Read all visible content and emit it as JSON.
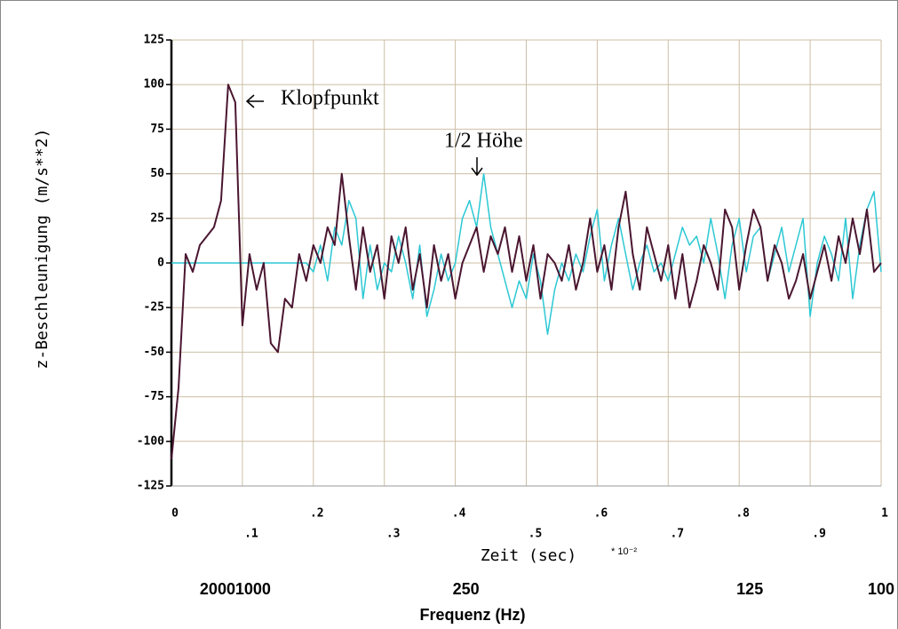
{
  "chart_data": {
    "type": "line",
    "y_label": "z-Beschleunigung (m/s**2)",
    "x_label": "Zeit (sec)",
    "x_unit": "* 10⁻²",
    "x2_label": "Frequenz (Hz)",
    "annotations": [
      {
        "text": "Klopfpunkt"
      },
      {
        "text": "1/2 Höhe"
      }
    ],
    "xlim": [
      0,
      1
    ],
    "ylim": [
      -125,
      125
    ],
    "xticks": [
      0,
      {
        "value": 0.1,
        "label": ".1"
      },
      {
        "value": 0.2,
        "label": ".2"
      },
      {
        "value": 0.3,
        "label": ".3"
      },
      {
        "value": 0.4,
        "label": ".4"
      },
      {
        "value": 0.5,
        "label": ".5"
      },
      {
        "value": 0.6,
        "label": ".6"
      },
      {
        "value": 0.7,
        "label": ".7"
      },
      {
        "value": 0.8,
        "label": ".8"
      },
      {
        "value": 0.9,
        "label": ".9"
      },
      1
    ],
    "x2ticks": [
      {
        "value": 0.05,
        "label": "2000"
      },
      {
        "value": 0.1,
        "label": "1000"
      },
      {
        "value": 0.4,
        "label": "250"
      },
      {
        "value": 0.8,
        "label": "125"
      },
      {
        "value": 1,
        "label": "100"
      }
    ],
    "yticks": [
      125,
      100,
      75,
      50,
      25,
      0,
      -25,
      -50,
      -75,
      -100,
      -125
    ],
    "grid": true,
    "x": [
      0,
      0.01,
      0.02,
      0.03,
      0.04,
      0.05,
      0.06,
      0.07,
      0.08,
      0.09,
      0.1,
      0.11,
      0.12,
      0.13,
      0.14,
      0.15,
      0.16,
      0.17,
      0.18,
      0.19,
      0.2,
      0.21,
      0.22,
      0.23,
      0.24,
      0.25,
      0.26,
      0.27,
      0.28,
      0.29,
      0.3,
      0.31,
      0.32,
      0.33,
      0.34,
      0.35,
      0.36,
      0.37,
      0.38,
      0.39,
      0.4,
      0.41,
      0.42,
      0.43,
      0.44,
      0.45,
      0.46,
      0.47,
      0.48,
      0.49,
      0.5,
      0.51,
      0.52,
      0.53,
      0.54,
      0.55,
      0.56,
      0.57,
      0.58,
      0.59,
      0.6,
      0.61,
      0.62,
      0.63,
      0.64,
      0.65,
      0.66,
      0.67,
      0.68,
      0.69,
      0.7,
      0.71,
      0.72,
      0.73,
      0.74,
      0.75,
      0.76,
      0.77,
      0.78,
      0.79,
      0.8,
      0.81,
      0.82,
      0.83,
      0.84,
      0.85,
      0.86,
      0.87,
      0.88,
      0.89,
      0.9,
      0.91,
      0.92,
      0.93,
      0.94,
      0.95,
      0.96,
      0.97,
      0.98,
      0.99,
      1
    ],
    "series": [
      {
        "color": "#2cc8d4",
        "values": [
          0,
          0,
          0,
          0,
          0,
          0,
          0,
          0,
          0,
          0,
          0,
          0,
          0,
          0,
          0,
          0,
          0,
          0,
          0,
          0,
          -5,
          10,
          -10,
          20,
          10,
          35,
          25,
          -20,
          10,
          -15,
          0,
          -5,
          15,
          0,
          -20,
          10,
          -30,
          -15,
          5,
          -10,
          0,
          25,
          35,
          20,
          50,
          20,
          5,
          -10,
          -25,
          -10,
          -20,
          5,
          -10,
          -40,
          -15,
          0,
          -10,
          5,
          -5,
          15,
          30,
          -10,
          10,
          25,
          5,
          -15,
          0,
          10,
          -5,
          0,
          -10,
          5,
          20,
          10,
          15,
          0,
          25,
          5,
          -20,
          10,
          25,
          -5,
          15,
          20,
          -10,
          5,
          20,
          -5,
          10,
          25,
          -30,
          0,
          15,
          5,
          -10,
          25,
          -20,
          10,
          30,
          40,
          -5
        ]
      },
      {
        "color": "#4a1630",
        "values": [
          -110,
          -70,
          5,
          -5,
          10,
          15,
          20,
          35,
          100,
          90,
          -35,
          5,
          -15,
          0,
          -45,
          -50,
          -20,
          -25,
          5,
          -10,
          10,
          0,
          20,
          10,
          50,
          15,
          -15,
          20,
          -5,
          10,
          -20,
          15,
          0,
          20,
          -15,
          5,
          -25,
          10,
          -10,
          5,
          -20,
          0,
          10,
          20,
          -5,
          15,
          5,
          20,
          -5,
          15,
          -10,
          10,
          -20,
          5,
          0,
          -10,
          10,
          -15,
          0,
          25,
          -5,
          10,
          -15,
          20,
          40,
          5,
          -15,
          20,
          5,
          -10,
          10,
          -20,
          5,
          -25,
          -10,
          10,
          0,
          -15,
          30,
          20,
          -15,
          10,
          30,
          20,
          -10,
          10,
          0,
          -20,
          -10,
          5,
          -20,
          -5,
          10,
          -10,
          15,
          0,
          25,
          5,
          30,
          -5,
          0
        ]
      }
    ]
  }
}
